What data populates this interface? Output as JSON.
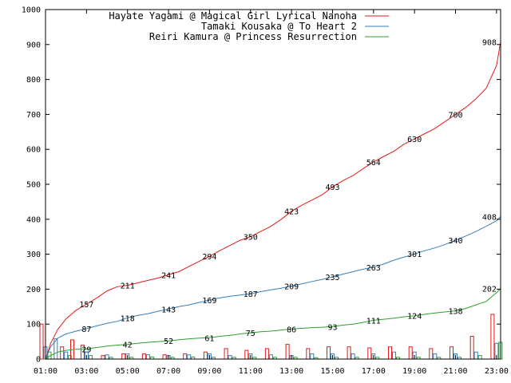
{
  "chart_data": {
    "type": "line",
    "x_ticks": [
      "01:00",
      "03:00",
      "05:00",
      "07:00",
      "09:00",
      "11:00",
      "13:00",
      "15:00",
      "17:00",
      "19:00",
      "21:00",
      "23:00"
    ],
    "y_ticks": [
      "0",
      "100",
      "200",
      "300",
      "400",
      "500",
      "600",
      "700",
      "800",
      "900",
      "1000"
    ],
    "xlim_hours": [
      1,
      23.2
    ],
    "ylim": [
      0,
      1000
    ],
    "grid": false,
    "legend_position": "top-right",
    "series": [
      {
        "name": "Hayate Yagami @ Magical Girl Lyrical Nanoha",
        "color": "#e41a1c",
        "cumulative": [
          [
            1.0,
            0
          ],
          [
            1.25,
            45
          ],
          [
            1.6,
            85
          ],
          [
            2.0,
            115
          ],
          [
            2.5,
            140
          ],
          [
            3.0,
            157
          ],
          [
            3.5,
            175
          ],
          [
            4.0,
            195
          ],
          [
            4.5,
            207
          ],
          [
            5.0,
            211
          ],
          [
            5.5,
            218
          ],
          [
            6.0,
            225
          ],
          [
            6.5,
            232
          ],
          [
            7.0,
            241
          ],
          [
            7.5,
            250
          ],
          [
            8.0,
            265
          ],
          [
            8.5,
            280
          ],
          [
            9.0,
            294
          ],
          [
            9.5,
            310
          ],
          [
            10.0,
            325
          ],
          [
            10.5,
            340
          ],
          [
            11.0,
            350
          ],
          [
            11.5,
            365
          ],
          [
            12.0,
            380
          ],
          [
            12.5,
            400
          ],
          [
            13.0,
            423
          ],
          [
            13.5,
            440
          ],
          [
            14.0,
            455
          ],
          [
            14.5,
            470
          ],
          [
            15.0,
            493
          ],
          [
            15.5,
            510
          ],
          [
            16.0,
            525
          ],
          [
            16.5,
            545
          ],
          [
            17.0,
            564
          ],
          [
            17.5,
            580
          ],
          [
            18.0,
            595
          ],
          [
            18.5,
            615
          ],
          [
            19.0,
            630
          ],
          [
            19.5,
            645
          ],
          [
            20.0,
            660
          ],
          [
            20.5,
            680
          ],
          [
            21.0,
            700
          ],
          [
            21.5,
            720
          ],
          [
            22.0,
            745
          ],
          [
            22.5,
            775
          ],
          [
            23.0,
            840
          ],
          [
            23.2,
            908
          ]
        ],
        "data_labels": [
          {
            "x": 3.0,
            "y": 157,
            "text": "157"
          },
          {
            "x": 5.0,
            "y": 211,
            "text": "211"
          },
          {
            "x": 7.0,
            "y": 241,
            "text": "241"
          },
          {
            "x": 9.0,
            "y": 294,
            "text": "294"
          },
          {
            "x": 11.0,
            "y": 350,
            "text": "350"
          },
          {
            "x": 13.0,
            "y": 423,
            "text": "423"
          },
          {
            "x": 15.0,
            "y": 493,
            "text": "493"
          },
          {
            "x": 17.0,
            "y": 564,
            "text": "564"
          },
          {
            "x": 19.0,
            "y": 630,
            "text": "630"
          },
          {
            "x": 21.0,
            "y": 700,
            "text": "700"
          },
          {
            "x": 23.0,
            "y": 908,
            "text": "908"
          }
        ],
        "bars": [
          [
            1.0,
            100
          ],
          [
            2.0,
            35
          ],
          [
            2.5,
            55
          ],
          [
            3.0,
            40
          ],
          [
            4.0,
            10
          ],
          [
            5.0,
            15
          ],
          [
            6.0,
            15
          ],
          [
            7.0,
            12
          ],
          [
            8.0,
            15
          ],
          [
            9.0,
            20
          ],
          [
            10.0,
            30
          ],
          [
            11.0,
            25
          ],
          [
            12.0,
            30
          ],
          [
            13.0,
            42
          ],
          [
            14.0,
            30
          ],
          [
            15.0,
            35
          ],
          [
            16.0,
            35
          ],
          [
            17.0,
            32
          ],
          [
            18.0,
            35
          ],
          [
            19.0,
            35
          ],
          [
            20.0,
            30
          ],
          [
            21.0,
            35
          ],
          [
            22.0,
            65
          ],
          [
            23.0,
            128
          ]
        ]
      },
      {
        "name": "Tamaki Kousaka @ To Heart 2",
        "color": "#377eb8",
        "cumulative": [
          [
            1.0,
            0
          ],
          [
            1.25,
            35
          ],
          [
            1.6,
            60
          ],
          [
            2.0,
            72
          ],
          [
            2.5,
            80
          ],
          [
            3.0,
            87
          ],
          [
            3.5,
            95
          ],
          [
            4.0,
            102
          ],
          [
            4.5,
            108
          ],
          [
            5.0,
            118
          ],
          [
            5.5,
            125
          ],
          [
            6.0,
            130
          ],
          [
            6.5,
            137
          ],
          [
            7.0,
            143
          ],
          [
            7.5,
            150
          ],
          [
            8.0,
            155
          ],
          [
            8.5,
            162
          ],
          [
            9.0,
            169
          ],
          [
            9.5,
            175
          ],
          [
            10.0,
            180
          ],
          [
            10.5,
            183
          ],
          [
            11.0,
            187
          ],
          [
            11.5,
            193
          ],
          [
            12.0,
            198
          ],
          [
            12.5,
            203
          ],
          [
            13.0,
            209
          ],
          [
            13.5,
            215
          ],
          [
            14.0,
            222
          ],
          [
            14.5,
            228
          ],
          [
            15.0,
            235
          ],
          [
            15.5,
            243
          ],
          [
            16.0,
            250
          ],
          [
            16.5,
            257
          ],
          [
            17.0,
            263
          ],
          [
            17.5,
            272
          ],
          [
            18.0,
            283
          ],
          [
            18.5,
            292
          ],
          [
            19.0,
            301
          ],
          [
            19.5,
            310
          ],
          [
            20.0,
            318
          ],
          [
            20.5,
            328
          ],
          [
            21.0,
            340
          ],
          [
            21.5,
            352
          ],
          [
            22.0,
            365
          ],
          [
            22.5,
            380
          ],
          [
            23.0,
            396
          ],
          [
            23.2,
            408
          ]
        ],
        "data_labels": [
          {
            "x": 3.0,
            "y": 87,
            "text": "87"
          },
          {
            "x": 5.0,
            "y": 118,
            "text": "118"
          },
          {
            "x": 7.0,
            "y": 143,
            "text": "143"
          },
          {
            "x": 9.0,
            "y": 169,
            "text": "169"
          },
          {
            "x": 11.0,
            "y": 187,
            "text": "187"
          },
          {
            "x": 13.0,
            "y": 209,
            "text": "209"
          },
          {
            "x": 15.0,
            "y": 235,
            "text": "235"
          },
          {
            "x": 17.0,
            "y": 263,
            "text": "263"
          },
          {
            "x": 19.0,
            "y": 301,
            "text": "301"
          },
          {
            "x": 21.0,
            "y": 340,
            "text": "340"
          },
          {
            "x": 23.0,
            "y": 408,
            "text": "408"
          }
        ],
        "bars": [
          [
            1.0,
            35
          ],
          [
            1.5,
            58
          ],
          [
            2.0,
            20
          ],
          [
            3.0,
            20
          ],
          [
            4.0,
            12
          ],
          [
            5.0,
            15
          ],
          [
            6.0,
            12
          ],
          [
            7.0,
            10
          ],
          [
            8.0,
            12
          ],
          [
            9.0,
            15
          ],
          [
            10.0,
            10
          ],
          [
            11.0,
            15
          ],
          [
            12.0,
            12
          ],
          [
            13.0,
            10
          ],
          [
            14.0,
            15
          ],
          [
            15.0,
            15
          ],
          [
            16.0,
            15
          ],
          [
            17.0,
            15
          ],
          [
            18.0,
            20
          ],
          [
            19.0,
            20
          ],
          [
            20.0,
            15
          ],
          [
            21.0,
            15
          ],
          [
            22.0,
            20
          ],
          [
            23.0,
            45
          ]
        ]
      },
      {
        "name": "Reiri Kamura @ Princess Resurrection",
        "color": "#2ca02c",
        "cumulative": [
          [
            1.0,
            0
          ],
          [
            1.25,
            10
          ],
          [
            1.6,
            20
          ],
          [
            2.0,
            25
          ],
          [
            2.5,
            28
          ],
          [
            3.0,
            29
          ],
          [
            3.5,
            33
          ],
          [
            4.0,
            37
          ],
          [
            4.5,
            40
          ],
          [
            5.0,
            42
          ],
          [
            5.5,
            45
          ],
          [
            6.0,
            48
          ],
          [
            6.5,
            50
          ],
          [
            7.0,
            52
          ],
          [
            7.5,
            55
          ],
          [
            8.0,
            58
          ],
          [
            8.5,
            60
          ],
          [
            9.0,
            61
          ],
          [
            9.5,
            65
          ],
          [
            10.0,
            68
          ],
          [
            10.5,
            72
          ],
          [
            11.0,
            75
          ],
          [
            11.5,
            78
          ],
          [
            12.0,
            80
          ],
          [
            12.5,
            83
          ],
          [
            13.0,
            86
          ],
          [
            13.5,
            88
          ],
          [
            14.0,
            90
          ],
          [
            14.5,
            91
          ],
          [
            15.0,
            93
          ],
          [
            15.5,
            97
          ],
          [
            16.0,
            100
          ],
          [
            16.5,
            105
          ],
          [
            17.0,
            111
          ],
          [
            17.5,
            114
          ],
          [
            18.0,
            117
          ],
          [
            18.5,
            121
          ],
          [
            19.0,
            124
          ],
          [
            19.5,
            128
          ],
          [
            20.0,
            132
          ],
          [
            20.5,
            135
          ],
          [
            21.0,
            138
          ],
          [
            21.5,
            145
          ],
          [
            22.0,
            155
          ],
          [
            22.5,
            165
          ],
          [
            23.0,
            190
          ],
          [
            23.2,
            202
          ]
        ],
        "data_labels": [
          {
            "x": 3.0,
            "y": 29,
            "text": "29"
          },
          {
            "x": 5.0,
            "y": 42,
            "text": "42"
          },
          {
            "x": 7.0,
            "y": 52,
            "text": "52"
          },
          {
            "x": 9.0,
            "y": 61,
            "text": "61"
          },
          {
            "x": 11.0,
            "y": 75,
            "text": "75"
          },
          {
            "x": 13.0,
            "y": 86,
            "text": "86"
          },
          {
            "x": 15.0,
            "y": 93,
            "text": "93"
          },
          {
            "x": 17.0,
            "y": 111,
            "text": "111"
          },
          {
            "x": 19.0,
            "y": 124,
            "text": "124"
          },
          {
            "x": 21.0,
            "y": 138,
            "text": "138"
          },
          {
            "x": 23.0,
            "y": 202,
            "text": "202"
          }
        ],
        "bars": [
          [
            1.0,
            20
          ],
          [
            2.0,
            10
          ],
          [
            3.0,
            10
          ],
          [
            4.0,
            5
          ],
          [
            5.0,
            5
          ],
          [
            6.0,
            6
          ],
          [
            7.0,
            5
          ],
          [
            8.0,
            6
          ],
          [
            9.0,
            5
          ],
          [
            10.0,
            5
          ],
          [
            11.0,
            5
          ],
          [
            12.0,
            5
          ],
          [
            13.0,
            5
          ],
          [
            14.0,
            4
          ],
          [
            15.0,
            5
          ],
          [
            16.0,
            5
          ],
          [
            17.0,
            5
          ],
          [
            18.0,
            5
          ],
          [
            19.0,
            5
          ],
          [
            20.0,
            5
          ],
          [
            21.0,
            5
          ],
          [
            22.0,
            10
          ],
          [
            23.0,
            48
          ]
        ]
      }
    ]
  }
}
